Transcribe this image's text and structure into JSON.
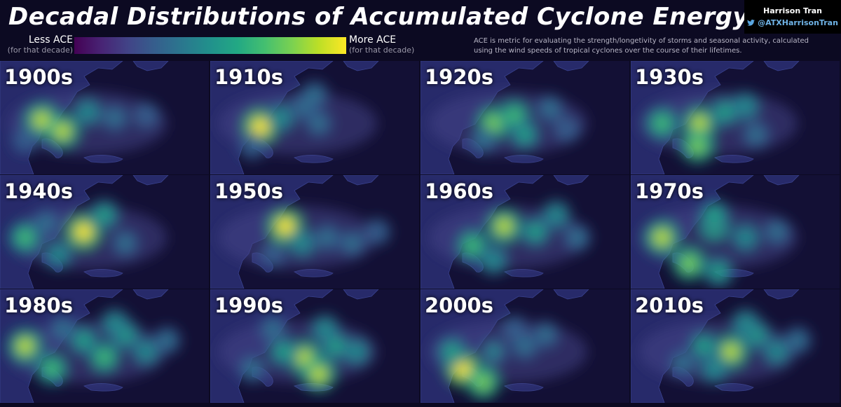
{
  "title": "Decadal Distributions of Accumulated Cyclone Energy",
  "credit": {
    "name": "Harrison Tran",
    "handle": "@ATXHarrisonTran",
    "icon": "twitter-bird-icon"
  },
  "legend": {
    "less_label": "Less ACE",
    "less_sub": "(for that decade)",
    "more_label": "More ACE",
    "more_sub": "(for that decade)",
    "colormap": [
      "#440154",
      "#482475",
      "#414487",
      "#355f8d",
      "#2a788e",
      "#21918c",
      "#22a884",
      "#44bf70",
      "#7ad151",
      "#bddf26",
      "#fde725"
    ]
  },
  "description": "ACE is metric for evaluating the strength/longetivity of storms and seasonal activity, calculated using the wind speeds of tropical cyclones over the course of their lifetimes.",
  "map": {
    "land_color": "#272a6a",
    "ocean_color": "#131035"
  },
  "panels": [
    {
      "decade": "1900s",
      "hotspots": [
        [
          0.2,
          0.52,
          0.9
        ],
        [
          0.3,
          0.62,
          0.85
        ],
        [
          0.42,
          0.45,
          0.5
        ],
        [
          0.55,
          0.5,
          0.4
        ],
        [
          0.7,
          0.48,
          0.3
        ],
        [
          0.12,
          0.7,
          0.3
        ]
      ]
    },
    {
      "decade": "1910s",
      "hotspots": [
        [
          0.24,
          0.58,
          0.95
        ],
        [
          0.34,
          0.5,
          0.5
        ],
        [
          0.45,
          0.4,
          0.4
        ],
        [
          0.52,
          0.55,
          0.35
        ],
        [
          0.5,
          0.3,
          0.4
        ],
        [
          0.2,
          0.75,
          0.3
        ]
      ]
    },
    {
      "decade": "1920s",
      "hotspots": [
        [
          0.35,
          0.55,
          0.8
        ],
        [
          0.45,
          0.48,
          0.7
        ],
        [
          0.5,
          0.65,
          0.6
        ],
        [
          0.62,
          0.42,
          0.4
        ],
        [
          0.3,
          0.7,
          0.4
        ],
        [
          0.7,
          0.6,
          0.3
        ]
      ]
    },
    {
      "decade": "1930s",
      "hotspots": [
        [
          0.15,
          0.55,
          0.7
        ],
        [
          0.33,
          0.55,
          0.85
        ],
        [
          0.32,
          0.75,
          0.8
        ],
        [
          0.45,
          0.45,
          0.6
        ],
        [
          0.55,
          0.4,
          0.5
        ],
        [
          0.6,
          0.65,
          0.4
        ]
      ]
    },
    {
      "decade": "1940s",
      "hotspots": [
        [
          0.12,
          0.55,
          0.7
        ],
        [
          0.4,
          0.5,
          0.95
        ],
        [
          0.5,
          0.35,
          0.6
        ],
        [
          0.28,
          0.7,
          0.5
        ],
        [
          0.6,
          0.6,
          0.4
        ],
        [
          0.22,
          0.42,
          0.4
        ]
      ]
    },
    {
      "decade": "1950s",
      "hotspots": [
        [
          0.36,
          0.45,
          0.95
        ],
        [
          0.44,
          0.6,
          0.5
        ],
        [
          0.56,
          0.55,
          0.4
        ],
        [
          0.68,
          0.6,
          0.35
        ],
        [
          0.3,
          0.7,
          0.3
        ],
        [
          0.8,
          0.5,
          0.3
        ]
      ]
    },
    {
      "decade": "1960s",
      "hotspots": [
        [
          0.4,
          0.45,
          0.9
        ],
        [
          0.25,
          0.62,
          0.7
        ],
        [
          0.55,
          0.5,
          0.6
        ],
        [
          0.65,
          0.35,
          0.5
        ],
        [
          0.75,
          0.55,
          0.4
        ],
        [
          0.35,
          0.75,
          0.5
        ]
      ]
    },
    {
      "decade": "1970s",
      "hotspots": [
        [
          0.15,
          0.55,
          0.9
        ],
        [
          0.4,
          0.45,
          0.7
        ],
        [
          0.28,
          0.78,
          0.8
        ],
        [
          0.42,
          0.85,
          0.6
        ],
        [
          0.55,
          0.55,
          0.5
        ],
        [
          0.7,
          0.5,
          0.4
        ],
        [
          0.4,
          0.35,
          0.6
        ]
      ]
    },
    {
      "decade": "1980s",
      "hotspots": [
        [
          0.12,
          0.5,
          0.9
        ],
        [
          0.25,
          0.7,
          0.7
        ],
        [
          0.4,
          0.45,
          0.6
        ],
        [
          0.5,
          0.6,
          0.65
        ],
        [
          0.6,
          0.4,
          0.6
        ],
        [
          0.7,
          0.55,
          0.5
        ],
        [
          0.55,
          0.3,
          0.5
        ],
        [
          0.3,
          0.35,
          0.4
        ],
        [
          0.8,
          0.45,
          0.4
        ]
      ]
    },
    {
      "decade": "1990s",
      "hotspots": [
        [
          0.45,
          0.6,
          0.85
        ],
        [
          0.52,
          0.75,
          0.9
        ],
        [
          0.35,
          0.55,
          0.6
        ],
        [
          0.6,
          0.5,
          0.6
        ],
        [
          0.7,
          0.55,
          0.5
        ],
        [
          0.55,
          0.35,
          0.5
        ],
        [
          0.3,
          0.35,
          0.4
        ],
        [
          0.2,
          0.7,
          0.4
        ]
      ]
    },
    {
      "decade": "2000s",
      "hotspots": [
        [
          0.2,
          0.7,
          0.95
        ],
        [
          0.3,
          0.82,
          0.8
        ],
        [
          0.15,
          0.55,
          0.6
        ],
        [
          0.35,
          0.55,
          0.45
        ],
        [
          0.5,
          0.5,
          0.4
        ],
        [
          0.6,
          0.4,
          0.35
        ],
        [
          0.45,
          0.35,
          0.3
        ]
      ]
    },
    {
      "decade": "2010s",
      "hotspots": [
        [
          0.48,
          0.55,
          0.9
        ],
        [
          0.35,
          0.5,
          0.6
        ],
        [
          0.6,
          0.4,
          0.6
        ],
        [
          0.7,
          0.55,
          0.5
        ],
        [
          0.4,
          0.7,
          0.5
        ],
        [
          0.25,
          0.65,
          0.4
        ],
        [
          0.55,
          0.3,
          0.5
        ],
        [
          0.8,
          0.45,
          0.4
        ]
      ]
    }
  ]
}
